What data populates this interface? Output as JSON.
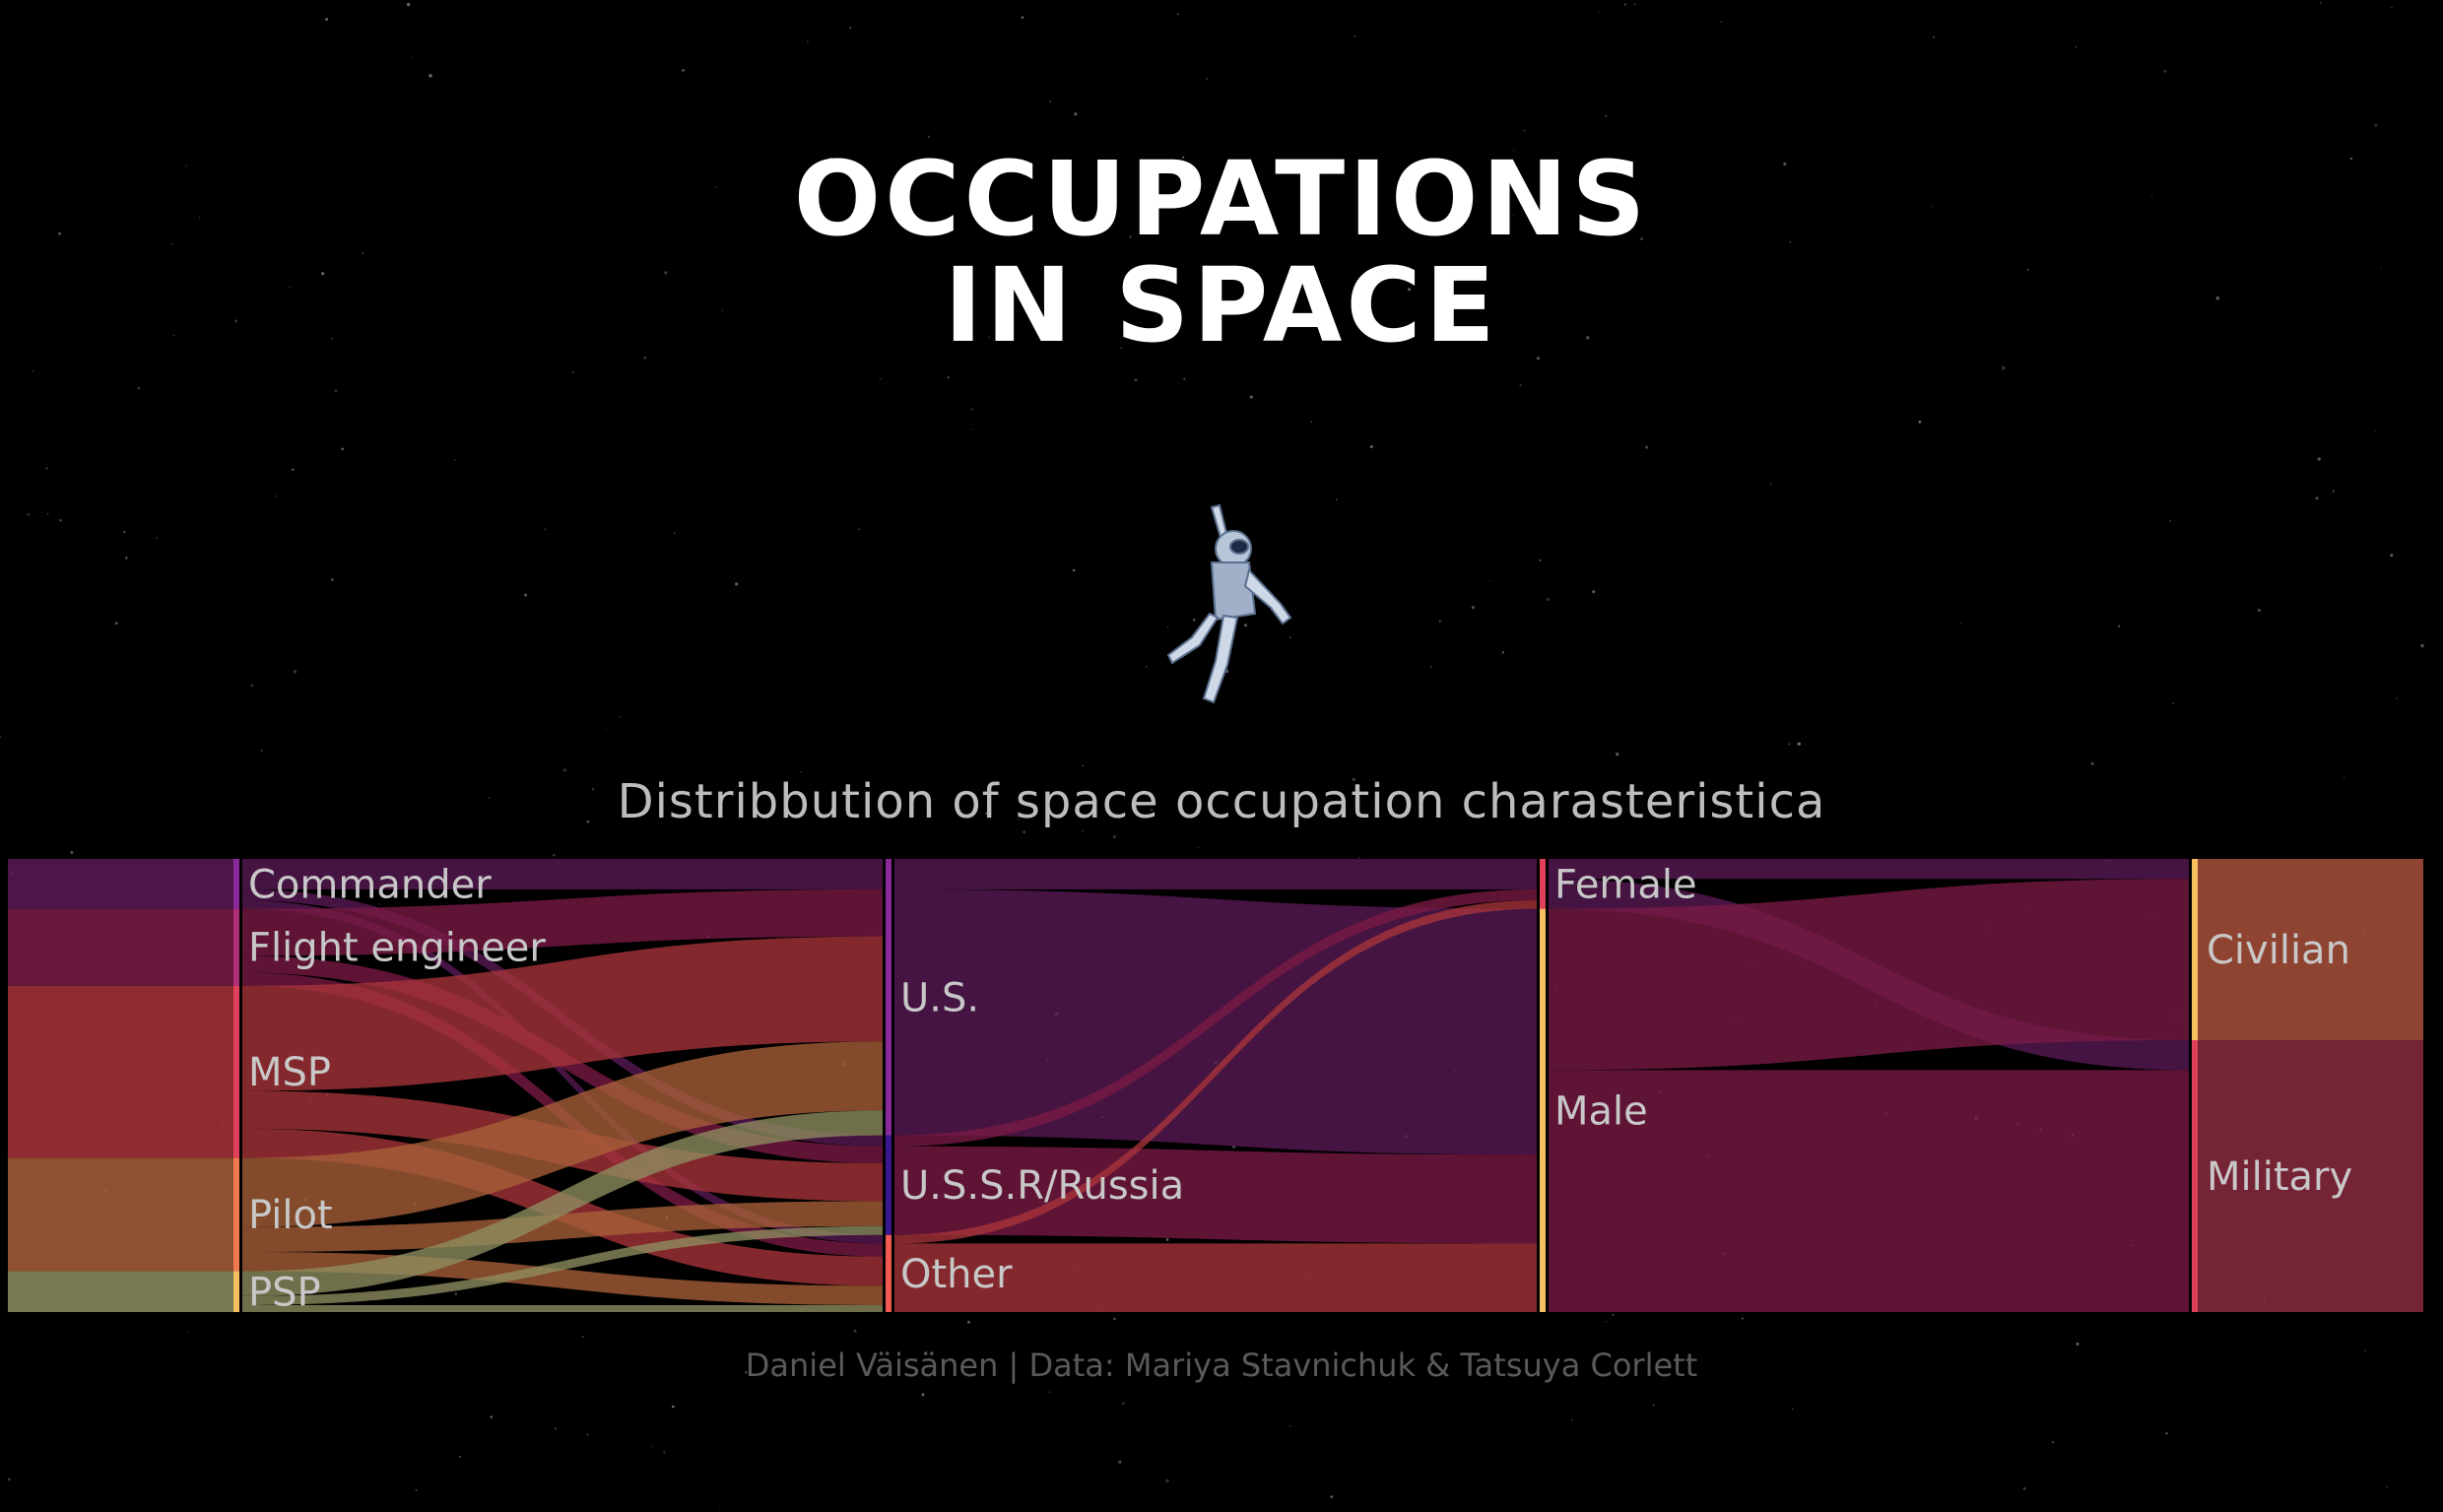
{
  "title": {
    "line1": "OCCUPATIONS",
    "line2": "IN SPACE"
  },
  "subtitle": "Distribbution of space occupation charasteristica",
  "credit": "Daniel Väisänen | Data: Mariya Stavnichuk & Tatsuya Corlett",
  "image": {
    "icon": "astronaut-icon"
  },
  "colors": {
    "background": "#000000",
    "commander": "#5a1a55",
    "flight_engineer": "#7a1a45",
    "msp": "#c0363a",
    "pilot": "#c0703a",
    "psp": "#b8b070",
    "us": "#a04040",
    "ussr": "#4a1060",
    "other": "#c05045",
    "female": "#b03a45",
    "male": "#c07040",
    "civilian": "#d07a48",
    "military": "#b02f5a"
  },
  "chart_data": {
    "type": "sankey",
    "axes": [
      {
        "name": "occupation",
        "nodes": [
          {
            "label": "Commander",
            "value": 11,
            "color": "#8a2a9a"
          },
          {
            "label": "Flight engineer",
            "value": 17,
            "color": "#b0307a"
          },
          {
            "label": "MSP",
            "value": 38,
            "color": "#e0405a"
          },
          {
            "label": "Pilot",
            "value": 25,
            "color": "#f07a50"
          },
          {
            "label": "PSP",
            "value": 9,
            "color": "#f5c060"
          }
        ]
      },
      {
        "name": "nationality",
        "nodes": [
          {
            "label": "U.S.",
            "value": 61,
            "color": "#8a2a9a"
          },
          {
            "label": "U.S.S.R/Russia",
            "value": 22,
            "color": "#3a1890"
          },
          {
            "label": "Other",
            "value": 17,
            "color": "#f05a50"
          }
        ]
      },
      {
        "name": "sex",
        "nodes": [
          {
            "label": "Female",
            "value": 11,
            "color": "#e0405a"
          },
          {
            "label": "Male",
            "value": 89,
            "color": "#f5c060"
          }
        ]
      },
      {
        "name": "military_civilian",
        "nodes": [
          {
            "label": "Civilian",
            "value": 40,
            "color": "#f5c060"
          },
          {
            "label": "Military",
            "value": 60,
            "color": "#e0405a"
          }
        ]
      }
    ]
  }
}
